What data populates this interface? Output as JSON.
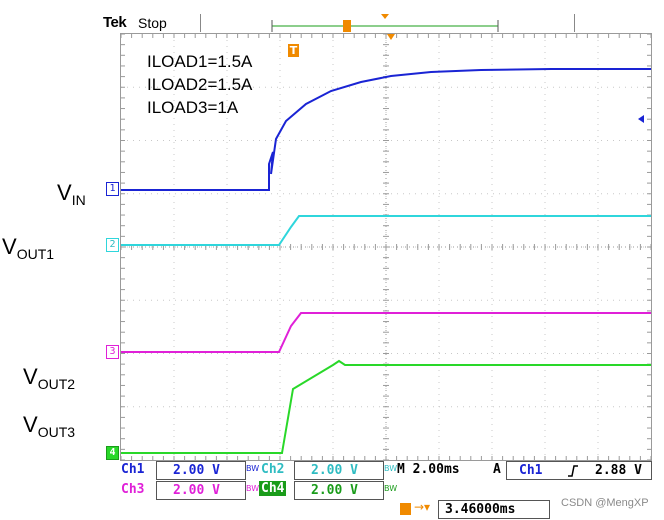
{
  "header": {
    "brand": "Tek",
    "acq_state": "Stop"
  },
  "annotations": {
    "line1": "ILOAD1=1.5A",
    "line2": "ILOAD2=1.5A",
    "line3": "ILOAD3=1A"
  },
  "channel_labels": {
    "vin_main": "V",
    "vin_sub": "IN",
    "vout1_main": "V",
    "vout1_sub": "OUT1",
    "vout2_main": "V",
    "vout2_sub": "OUT2",
    "vout3_main": "V",
    "vout3_sub": "OUT3"
  },
  "channel_markers": {
    "ch1": "1",
    "ch2": "2",
    "ch3": "3",
    "ch4": "4"
  },
  "trigger_marker": "T",
  "status": {
    "ch1_label": "Ch1",
    "ch1_scale": "2.00 V",
    "ch2_label": "Ch2",
    "ch2_scale": "2.00 V",
    "ch3_label": "Ch3",
    "ch3_scale": "2.00 V",
    "ch4_label": "Ch4",
    "ch4_scale": "2.00 V",
    "bw_mark": "BW",
    "timebase": "M 2.00ms",
    "trigger_mode": "A",
    "trigger_source": "Ch1",
    "trigger_slope_icon": "rising-edge-icon",
    "trigger_level": "2.88 V",
    "trigger_position": "3.46000ms"
  },
  "watermark": "CSDN @MengXP",
  "colors": {
    "ch1": "#1a24d4",
    "ch2": "#2fd6dc",
    "ch3": "#e020d8",
    "ch4": "#29d829",
    "trigger": "#f08a00"
  }
}
